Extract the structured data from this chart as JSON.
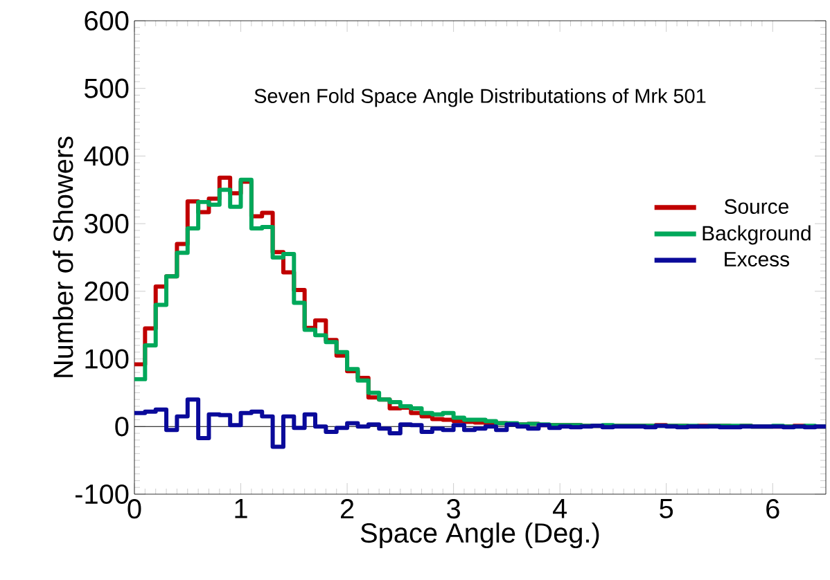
{
  "chart_data": {
    "type": "histogram",
    "title": "Seven Fold Space Angle Distributations of Mrk 501",
    "xlabel": "Space Angle (Deg.)",
    "ylabel": "Number of Showers",
    "bins": [
      0,
      0.1,
      0.2,
      0.3,
      0.4,
      0.5,
      0.6,
      0.7,
      0.8,
      0.9,
      1,
      1.1,
      1.2,
      1.3,
      1.4,
      1.5,
      1.6,
      1.7,
      1.8,
      1.9,
      2,
      2.1,
      2.2,
      2.3,
      2.4,
      2.5,
      2.6,
      2.7,
      2.8,
      2.9,
      3,
      3.1,
      3.2,
      3.3,
      3.4,
      3.5,
      3.6,
      3.7,
      3.8,
      3.9,
      4,
      4.1,
      4.2,
      4.3,
      4.4,
      4.5,
      4.6,
      4.7,
      4.8,
      4.9,
      5,
      5.1,
      5.2,
      5.3,
      5.4,
      5.5,
      5.6,
      5.7,
      5.8,
      5.9,
      6,
      6.1,
      6.2,
      6.3,
      6.4,
      6.5
    ],
    "series": [
      {
        "name": "Source",
        "color": "#c00000",
        "values": [
          92,
          145,
          207,
          222,
          270,
          333,
          317,
          337,
          368,
          345,
          362,
          311,
          316,
          258,
          228,
          202,
          146,
          157,
          128,
          105,
          82,
          72,
          43,
          40,
          27,
          28,
          20,
          15,
          11,
          10,
          8,
          7,
          6,
          5,
          5,
          4,
          3,
          4,
          2,
          2,
          2,
          2,
          1,
          1,
          1,
          1,
          1,
          1,
          1,
          2,
          1,
          1,
          0,
          1,
          1,
          1,
          0,
          1,
          0,
          0,
          0,
          0,
          1,
          0,
          0
        ]
      },
      {
        "name": "Background",
        "color": "#00a85a",
        "values": [
          70,
          120,
          180,
          222,
          257,
          293,
          332,
          328,
          350,
          325,
          365,
          293,
          295,
          250,
          255,
          183,
          143,
          135,
          125,
          110,
          85,
          68,
          50,
          40,
          36,
          30,
          27,
          20,
          18,
          20,
          13,
          10,
          10,
          8,
          5,
          5,
          3,
          4,
          3,
          2,
          2,
          2,
          1,
          1,
          2,
          1,
          1,
          1,
          1,
          1,
          1,
          1,
          1,
          0,
          1,
          1,
          1,
          1,
          0,
          0,
          1,
          0,
          0,
          1,
          0
        ]
      },
      {
        "name": "Excess",
        "color": "#0a0a9a",
        "values": [
          20,
          22,
          25,
          -5,
          15,
          40,
          -17,
          18,
          17,
          2,
          20,
          22,
          15,
          -30,
          15,
          -2,
          18,
          0,
          -8,
          -2,
          5,
          0,
          3,
          -3,
          -10,
          3,
          2,
          -8,
          -3,
          -5,
          2,
          -5,
          -3,
          0,
          -5,
          3,
          0,
          -3,
          2,
          -2,
          0,
          -1,
          0,
          1,
          -1,
          0,
          0,
          0,
          -1,
          1,
          0,
          -1,
          0,
          0,
          0,
          -1,
          -1,
          0,
          0,
          0,
          0,
          -1,
          0,
          -1,
          0
        ]
      }
    ],
    "xlim": [
      0,
      6.5
    ],
    "ylim": [
      -100,
      600
    ],
    "xticks": [
      0,
      1,
      2,
      3,
      4,
      5,
      6
    ],
    "yticks": [
      -100,
      0,
      100,
      200,
      300,
      400,
      500,
      600
    ],
    "ref_lines": [
      {
        "axis": "y",
        "value": 0,
        "color": "#000000"
      }
    ],
    "legend": "right"
  }
}
